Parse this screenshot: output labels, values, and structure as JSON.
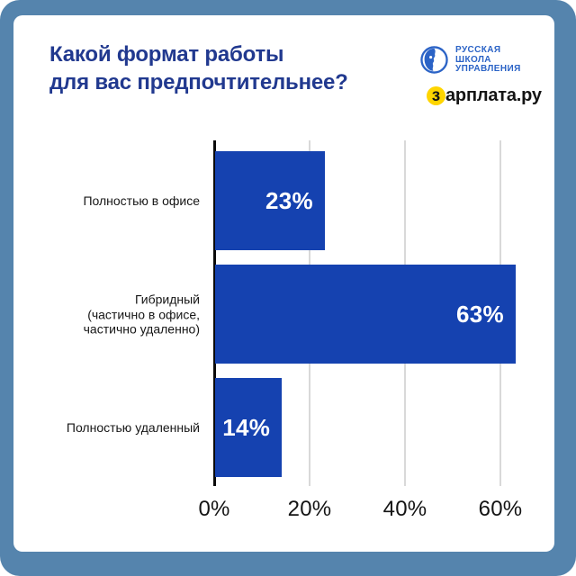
{
  "frame": {
    "outer_color": "#5584ad",
    "card_color": "#ffffff"
  },
  "header": {
    "title_line1": "Какой формат работы",
    "title_line2": "для вас предпочтительнее?",
    "title_color": "#21398f",
    "rsu_logo": {
      "lines": [
        "РУССКАЯ",
        "ШКОЛА",
        "УПРАВЛЕНИЯ"
      ],
      "color": "#2b63c6"
    },
    "zarplata_logo": {
      "first_letter": "з",
      "rest": "арплата.ру",
      "badge_color": "#ffd500"
    }
  },
  "chart_data": {
    "type": "bar",
    "orientation": "horizontal",
    "title": "Какой формат работы для вас предпочтительнее?",
    "categories": [
      "Полностью в офисе",
      "Гибридный (частично в офисе, частично удаленно)",
      "Полностью удаленный"
    ],
    "category_lines": [
      [
        "Полностью в офисе"
      ],
      [
        "Гибридный",
        "(частично в офисе,",
        "частично удаленно)"
      ],
      [
        "Полностью удаленный"
      ]
    ],
    "values": [
      23,
      63,
      14
    ],
    "value_labels": [
      "23%",
      "63%",
      "14%"
    ],
    "bar_color": "#1542b0",
    "x_ticks": [
      "0%",
      "20%",
      "40%",
      "60%"
    ],
    "x_tick_values": [
      0,
      20,
      40,
      60
    ],
    "xlim": [
      0,
      68
    ],
    "grid": true,
    "legend": "none"
  }
}
